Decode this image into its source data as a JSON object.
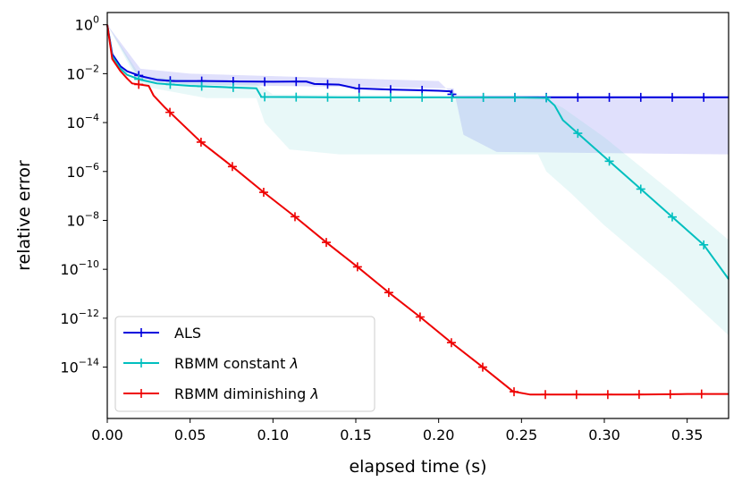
{
  "chart_data": {
    "type": "line",
    "xlabel": "elapsed time (s)",
    "ylabel": "relative error",
    "xlim": [
      0.0,
      0.375
    ],
    "ylim_log10": [
      -16.1,
      0.5
    ],
    "y_scale": "log",
    "x_ticks": [
      "0.00",
      "0.05",
      "0.10",
      "0.15",
      "0.20",
      "0.25",
      "0.30",
      "0.35"
    ],
    "x_tick_values": [
      0,
      0.05,
      0.1,
      0.15,
      0.2,
      0.25,
      0.3,
      0.35
    ],
    "y_tick_exponents": [
      0,
      -2,
      -4,
      -6,
      -8,
      -10,
      -12,
      -14
    ],
    "legend_position": "lower-left",
    "series": [
      {
        "name": "ALS",
        "label_prefix": "ALS",
        "label_suffix": "",
        "color": "#0000dd",
        "band_color": "#5555ee",
        "points": [
          [
            0.0,
            0.0
          ],
          [
            0.003,
            -1.2
          ],
          [
            0.008,
            -1.7
          ],
          [
            0.012,
            -1.9
          ],
          [
            0.02,
            -2.1
          ],
          [
            0.03,
            -2.25
          ],
          [
            0.04,
            -2.3
          ],
          [
            0.06,
            -2.3
          ],
          [
            0.08,
            -2.32
          ],
          [
            0.1,
            -2.33
          ],
          [
            0.12,
            -2.32
          ],
          [
            0.125,
            -2.42
          ],
          [
            0.14,
            -2.45
          ],
          [
            0.15,
            -2.6
          ],
          [
            0.17,
            -2.65
          ],
          [
            0.19,
            -2.68
          ],
          [
            0.2,
            -2.7
          ],
          [
            0.207,
            -2.72
          ],
          [
            0.209,
            -2.97
          ],
          [
            0.375,
            -2.97
          ]
        ],
        "markers_x": [
          0.019,
          0.038,
          0.057,
          0.076,
          0.095,
          0.114,
          0.133,
          0.152,
          0.171,
          0.19,
          0.208,
          0.227,
          0.246,
          0.265,
          0.284,
          0.303,
          0.322,
          0.341,
          0.36
        ],
        "band_upper": [
          [
            0.0,
            0.0
          ],
          [
            0.02,
            -1.8
          ],
          [
            0.05,
            -2.0
          ],
          [
            0.1,
            -2.1
          ],
          [
            0.15,
            -2.2
          ],
          [
            0.2,
            -2.3
          ],
          [
            0.209,
            -2.9
          ],
          [
            0.375,
            -2.9
          ]
        ],
        "band_lower": [
          [
            0.0,
            0.0
          ],
          [
            0.02,
            -2.3
          ],
          [
            0.05,
            -2.45
          ],
          [
            0.1,
            -2.5
          ],
          [
            0.15,
            -2.55
          ],
          [
            0.2,
            -2.6
          ],
          [
            0.209,
            -2.6
          ],
          [
            0.215,
            -4.5
          ],
          [
            0.235,
            -5.2
          ],
          [
            0.375,
            -5.3
          ]
        ]
      },
      {
        "name": "RBMM constant λ",
        "label_prefix": "RBMM constant ",
        "label_suffix": "λ",
        "color": "#00bfbf",
        "band_color": "#80dada",
        "points": [
          [
            0.0,
            0.0
          ],
          [
            0.003,
            -1.3
          ],
          [
            0.008,
            -1.8
          ],
          [
            0.012,
            -2.05
          ],
          [
            0.02,
            -2.25
          ],
          [
            0.03,
            -2.4
          ],
          [
            0.05,
            -2.5
          ],
          [
            0.07,
            -2.55
          ],
          [
            0.09,
            -2.6
          ],
          [
            0.093,
            -2.95
          ],
          [
            0.12,
            -2.96
          ],
          [
            0.15,
            -2.97
          ],
          [
            0.2,
            -2.97
          ],
          [
            0.25,
            -2.98
          ],
          [
            0.265,
            -2.99
          ],
          [
            0.27,
            -3.3
          ],
          [
            0.275,
            -3.9
          ],
          [
            0.285,
            -4.5
          ],
          [
            0.3,
            -5.4
          ],
          [
            0.32,
            -6.6
          ],
          [
            0.34,
            -7.8
          ],
          [
            0.36,
            -9.0
          ],
          [
            0.375,
            -10.4
          ]
        ],
        "markers_x": [
          0.019,
          0.038,
          0.057,
          0.076,
          0.095,
          0.114,
          0.133,
          0.152,
          0.171,
          0.19,
          0.208,
          0.227,
          0.246,
          0.265,
          0.284,
          0.303,
          0.322,
          0.341,
          0.36
        ],
        "band_upper": [
          [
            0.0,
            0.0
          ],
          [
            0.02,
            -2.1
          ],
          [
            0.06,
            -2.3
          ],
          [
            0.09,
            -2.4
          ],
          [
            0.1,
            -2.85
          ],
          [
            0.26,
            -2.9
          ],
          [
            0.275,
            -3.4
          ],
          [
            0.3,
            -4.6
          ],
          [
            0.34,
            -6.8
          ],
          [
            0.375,
            -8.8
          ]
        ],
        "band_lower": [
          [
            0.0,
            0.0
          ],
          [
            0.02,
            -2.5
          ],
          [
            0.06,
            -3.0
          ],
          [
            0.09,
            -3.0
          ],
          [
            0.095,
            -4.0
          ],
          [
            0.11,
            -5.1
          ],
          [
            0.14,
            -5.3
          ],
          [
            0.2,
            -5.3
          ],
          [
            0.26,
            -5.3
          ],
          [
            0.265,
            -6.0
          ],
          [
            0.28,
            -6.9
          ],
          [
            0.3,
            -8.2
          ],
          [
            0.34,
            -10.5
          ],
          [
            0.375,
            -12.7
          ]
        ]
      },
      {
        "name": "RBMM diminishing λ",
        "label_prefix": "RBMM diminishing ",
        "label_suffix": "λ",
        "color": "#ee0000",
        "band_color": "#ee6666",
        "points": [
          [
            0.0,
            0.0
          ],
          [
            0.003,
            -1.4
          ],
          [
            0.008,
            -1.9
          ],
          [
            0.012,
            -2.2
          ],
          [
            0.015,
            -2.4
          ],
          [
            0.025,
            -2.5
          ],
          [
            0.028,
            -2.9
          ],
          [
            0.035,
            -3.4
          ],
          [
            0.0566,
            -4.8
          ],
          [
            0.0755,
            -5.8
          ],
          [
            0.0944,
            -6.85
          ],
          [
            0.1133,
            -7.85
          ],
          [
            0.1322,
            -8.9
          ],
          [
            0.151,
            -9.9
          ],
          [
            0.1699,
            -10.95
          ],
          [
            0.1888,
            -11.95
          ],
          [
            0.2077,
            -13.0
          ],
          [
            0.2266,
            -14.0
          ],
          [
            0.245,
            -15.0
          ],
          [
            0.255,
            -15.12
          ],
          [
            0.28,
            -15.12
          ],
          [
            0.32,
            -15.12
          ],
          [
            0.35,
            -15.1
          ],
          [
            0.375,
            -15.1
          ]
        ],
        "markers_x": [
          0.019,
          0.0378,
          0.0566,
          0.0755,
          0.0944,
          0.1133,
          0.1322,
          0.151,
          0.1699,
          0.1888,
          0.2077,
          0.2266,
          0.2455,
          0.2644,
          0.2832,
          0.3021,
          0.321,
          0.3398,
          0.3587
        ],
        "band_upper": [],
        "band_lower": []
      }
    ]
  }
}
